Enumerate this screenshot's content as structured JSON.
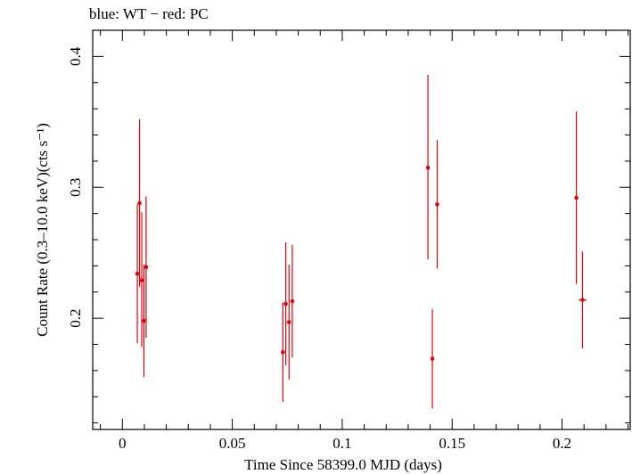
{
  "header": "blue: WT − red: PC",
  "chart_data": {
    "type": "scatter",
    "title": "blue: WT − red: PC",
    "xlabel": "Time Since 58399.0 MJD (days)",
    "ylabel": "Count Rate (0.3–10.0 keV)(cts s⁻¹)",
    "xlim": [
      -0.0135,
      0.231
    ],
    "ylim": [
      0.115,
      0.42
    ],
    "xticks": [
      0,
      0.05,
      0.1,
      0.15,
      0.2
    ],
    "xticklabels": [
      "0",
      "0.05",
      "0.1",
      "0.15",
      "0.2"
    ],
    "yticks": [
      0.2,
      0.3,
      0.4
    ],
    "yticklabels": [
      "0.2",
      "0.3",
      "0.4"
    ],
    "grid": false,
    "series": [
      {
        "color": "#e8000b",
        "points": [
          {
            "x": 0.0068,
            "y": 0.234,
            "ylo": 0.181,
            "yhi": 0.287,
            "xerr": 0.0007
          },
          {
            "x": 0.0078,
            "y": 0.288,
            "ylo": 0.224,
            "yhi": 0.352,
            "xerr": 0.0007
          },
          {
            "x": 0.0088,
            "y": 0.229,
            "ylo": 0.178,
            "yhi": 0.281,
            "xerr": 0.0007
          },
          {
            "x": 0.0098,
            "y": 0.198,
            "ylo": 0.155,
            "yhi": 0.241,
            "xerr": 0.0007
          },
          {
            "x": 0.0108,
            "y": 0.239,
            "ylo": 0.185,
            "yhi": 0.293,
            "xerr": 0.0007
          },
          {
            "x": 0.073,
            "y": 0.174,
            "ylo": 0.136,
            "yhi": 0.212,
            "xerr": 0.0007
          },
          {
            "x": 0.0743,
            "y": 0.211,
            "ylo": 0.164,
            "yhi": 0.258,
            "xerr": 0.0007
          },
          {
            "x": 0.0758,
            "y": 0.197,
            "ylo": 0.153,
            "yhi": 0.241,
            "xerr": 0.0007
          },
          {
            "x": 0.0773,
            "y": 0.213,
            "ylo": 0.17,
            "yhi": 0.256,
            "xerr": 0.0007
          },
          {
            "x": 0.139,
            "y": 0.315,
            "ylo": 0.245,
            "yhi": 0.386,
            "xerr": 0.0007
          },
          {
            "x": 0.141,
            "y": 0.169,
            "ylo": 0.131,
            "yhi": 0.207,
            "xerr": 0.0007
          },
          {
            "x": 0.1432,
            "y": 0.287,
            "ylo": 0.238,
            "yhi": 0.336,
            "xerr": 0.0007
          },
          {
            "x": 0.2065,
            "y": 0.292,
            "ylo": 0.226,
            "yhi": 0.358,
            "xerr": 0.0007
          },
          {
            "x": 0.2093,
            "y": 0.214,
            "ylo": 0.177,
            "yhi": 0.251,
            "xerr": 0.0018
          }
        ]
      }
    ]
  }
}
